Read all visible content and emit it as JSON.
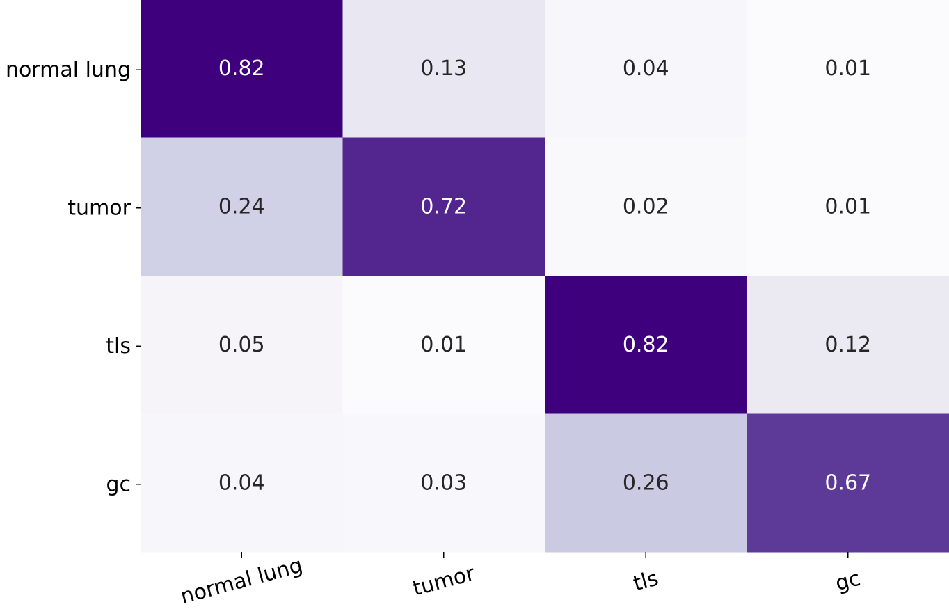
{
  "chart_data": {
    "type": "heatmap",
    "title": "",
    "xlabel": "",
    "ylabel": "",
    "x_categories": [
      "normal lung",
      "tumor",
      "tls",
      "gc"
    ],
    "y_categories": [
      "normal lung",
      "tumor",
      "tls",
      "gc"
    ],
    "values": [
      [
        0.82,
        0.13,
        0.04,
        0.01
      ],
      [
        0.24,
        0.72,
        0.02,
        0.01
      ],
      [
        0.05,
        0.01,
        0.82,
        0.12
      ],
      [
        0.04,
        0.03,
        0.26,
        0.67
      ]
    ],
    "value_labels": [
      [
        "0.82",
        "0.13",
        "0.04",
        "0.01"
      ],
      [
        "0.24",
        "0.72",
        "0.02",
        "0.01"
      ],
      [
        "0.05",
        "0.01",
        "0.82",
        "0.12"
      ],
      [
        "0.04",
        "0.03",
        "0.26",
        "0.67"
      ]
    ],
    "colormap": "Purples",
    "color_range": [
      0,
      0.82
    ],
    "x_tick_rotation": "slanted",
    "grid": false,
    "legend": "none"
  }
}
